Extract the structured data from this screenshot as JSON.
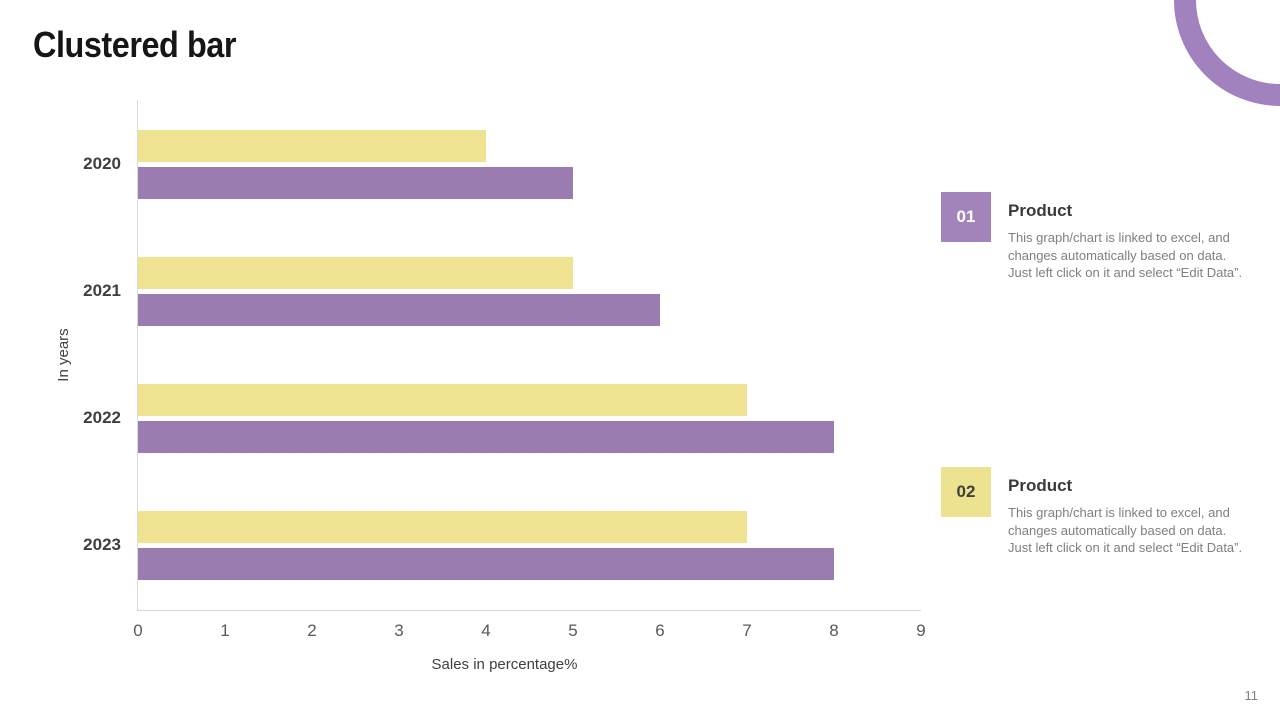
{
  "slide": {
    "title": "Clustered bar",
    "page_number": "11"
  },
  "chart_data": {
    "type": "bar",
    "orientation": "horizontal",
    "categories": [
      "2020",
      "2021",
      "2022",
      "2023"
    ],
    "series": [
      {
        "name": "Product 01",
        "color": "#9B7CB0",
        "values": [
          5,
          6,
          8,
          8
        ]
      },
      {
        "name": "Product 02",
        "color": "#EFE392",
        "values": [
          4,
          5,
          7,
          7
        ]
      }
    ],
    "series_display_top_to_bottom": [
      "Product 02",
      "Product 01"
    ],
    "xlabel": "Sales in percentage%",
    "ylabel": "In years",
    "xlim": [
      0,
      9
    ],
    "xticks": [
      "0",
      "1",
      "2",
      "3",
      "4",
      "5",
      "6",
      "7",
      "8",
      "9"
    ],
    "grid": false,
    "axis_line_color": "#D9D9D9",
    "legend_position": "right-panel"
  },
  "legend": {
    "items": [
      {
        "number": "01",
        "badge_color": "#A284BB",
        "number_color": "#FFFFFF",
        "title": "Product",
        "description": "This graph/chart is linked to excel, and changes automatically based on data. Just left click on it and select “Edit Data”."
      },
      {
        "number": "02",
        "badge_color": "#ECE28F",
        "number_color": "#3F3F3F",
        "title": "Product",
        "description": "This graph/chart is linked to excel, and changes automatically based on data. Just left click on it and select “Edit Data”."
      }
    ]
  },
  "decor": {
    "arc_color": "#A181BE"
  }
}
